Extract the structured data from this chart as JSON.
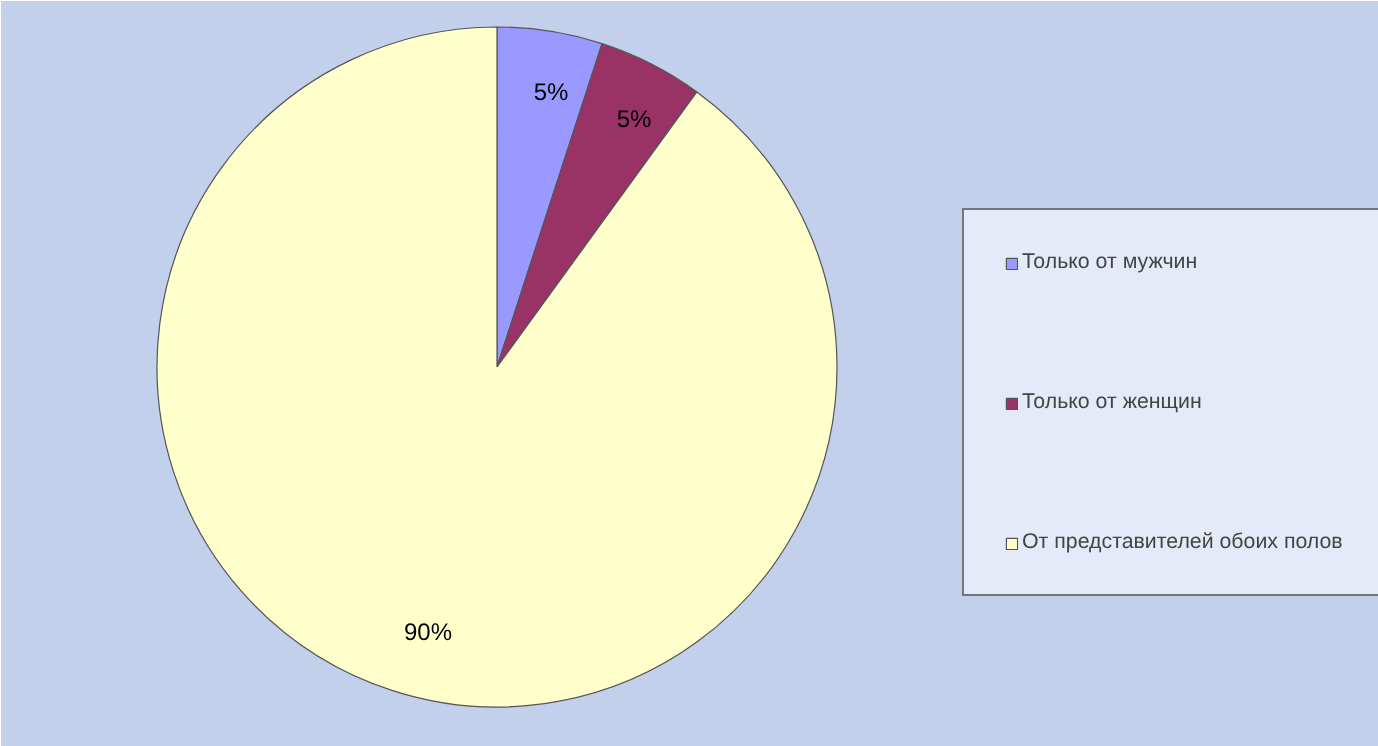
{
  "chart_data": {
    "type": "pie",
    "categories": [
      "Только от мужчин",
      "Только от женщин",
      "От представителей обоих полов"
    ],
    "values": [
      5,
      5,
      90
    ],
    "colors": [
      "#9999ff",
      "#993366",
      "#ffffcc"
    ],
    "value_labels": [
      "5%",
      "5%",
      "90%"
    ],
    "legend": "right"
  }
}
